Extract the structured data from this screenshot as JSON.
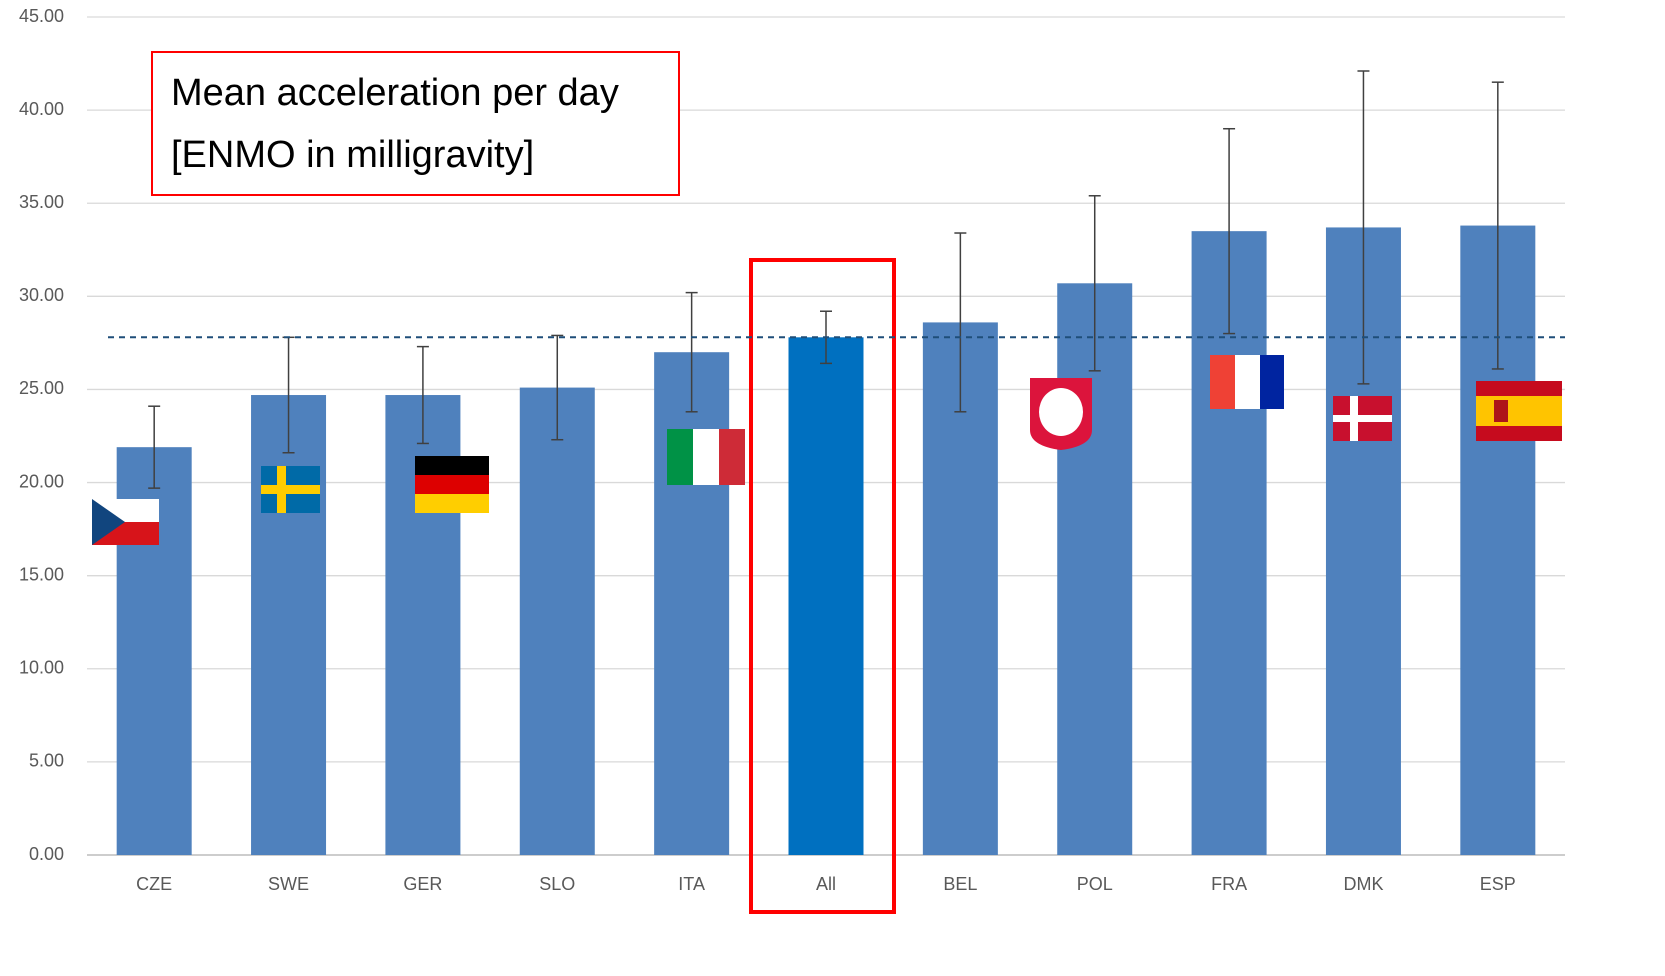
{
  "chart_data": {
    "type": "bar",
    "annotation": [
      "Mean acceleration per day",
      "[ENMO in milligravity]"
    ],
    "categories": [
      "CZE",
      "SWE",
      "GER",
      "SLO",
      "ITA",
      "All",
      "BEL",
      "POL",
      "FRA",
      "DMK",
      "ESP"
    ],
    "values": [
      21.9,
      24.7,
      24.7,
      25.1,
      27.0,
      27.8,
      28.6,
      30.7,
      33.5,
      33.7,
      33.8
    ],
    "errors": [
      2.2,
      3.1,
      2.6,
      2.8,
      3.2,
      1.4,
      4.8,
      4.7,
      5.5,
      8.4,
      7.7
    ],
    "color": "#4f81bd",
    "highlight": {
      "index": 5,
      "color": "#0070c0",
      "box_color": "#ff0000"
    },
    "reference_line": {
      "value": 27.8,
      "color": "#1f4e79"
    },
    "ylim": [
      0,
      45
    ],
    "yticks": [
      {
        "value": 0,
        "label": "0.00"
      },
      {
        "value": 5,
        "label": "5.00"
      },
      {
        "value": 10,
        "label": "10.00"
      },
      {
        "value": 15,
        "label": "15.00"
      },
      {
        "value": 20,
        "label": "20.00"
      },
      {
        "value": 25,
        "label": "25.00"
      },
      {
        "value": 30,
        "label": "30.00"
      },
      {
        "value": 35,
        "label": "35.00"
      },
      {
        "value": 40,
        "label": "40.00"
      },
      {
        "value": 45,
        "label": "45.00"
      }
    ],
    "grid": true
  }
}
